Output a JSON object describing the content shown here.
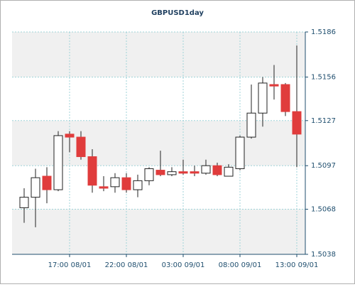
{
  "chart_data": {
    "type": "candlestick",
    "title": "GBPUSD1day",
    "categories": [
      null,
      null,
      null,
      null,
      "17:00 08/01",
      null,
      null,
      null,
      null,
      "22:00 08/01",
      null,
      null,
      null,
      null,
      "03:00 09/01",
      null,
      null,
      null,
      null,
      "08:00 09/01",
      null,
      null,
      null,
      null,
      "13:00 09/01"
    ],
    "open": [
      1.5069,
      1.5076,
      1.509,
      1.5081,
      1.5118,
      1.5116,
      1.5103,
      1.5083,
      1.5083,
      1.5089,
      1.5081,
      1.5087,
      1.5094,
      1.5091,
      1.5093,
      1.5093,
      1.5092,
      1.5097,
      1.509,
      1.5095,
      1.5116,
      1.5132,
      1.5151,
      1.5151,
      1.5133
    ],
    "high": [
      1.5082,
      1.5095,
      1.5096,
      1.512,
      1.512,
      1.512,
      1.5108,
      1.509,
      1.5092,
      1.5092,
      1.5091,
      1.5096,
      1.5107,
      1.5096,
      1.5101,
      1.5097,
      1.5101,
      1.5099,
      1.5098,
      1.5117,
      1.5151,
      1.5156,
      1.5164,
      1.5152,
      1.5177
    ],
    "low": [
      1.5059,
      1.5056,
      1.5072,
      1.508,
      1.5106,
      1.5101,
      1.5079,
      1.508,
      1.5079,
      1.5079,
      1.5076,
      1.5084,
      1.509,
      1.509,
      1.5091,
      1.509,
      1.5091,
      1.509,
      1.509,
      1.5094,
      1.5115,
      1.5123,
      1.5141,
      1.513,
      1.5096
    ],
    "close": [
      1.5076,
      1.5089,
      1.5081,
      1.5117,
      1.5116,
      1.5103,
      1.5084,
      1.5082,
      1.5089,
      1.5081,
      1.5087,
      1.5095,
      1.5091,
      1.5093,
      1.5092,
      1.5092,
      1.5097,
      1.5091,
      1.5096,
      1.5116,
      1.5132,
      1.5152,
      1.515,
      1.5133,
      1.5118
    ],
    "up_color": "#ffffff",
    "down_color": "#e03c3c",
    "ylim": [
      1.5038,
      1.5186
    ],
    "yticks": [
      1.5038,
      1.5068,
      1.5097,
      1.5127,
      1.5156,
      1.5186
    ],
    "grid": true
  }
}
